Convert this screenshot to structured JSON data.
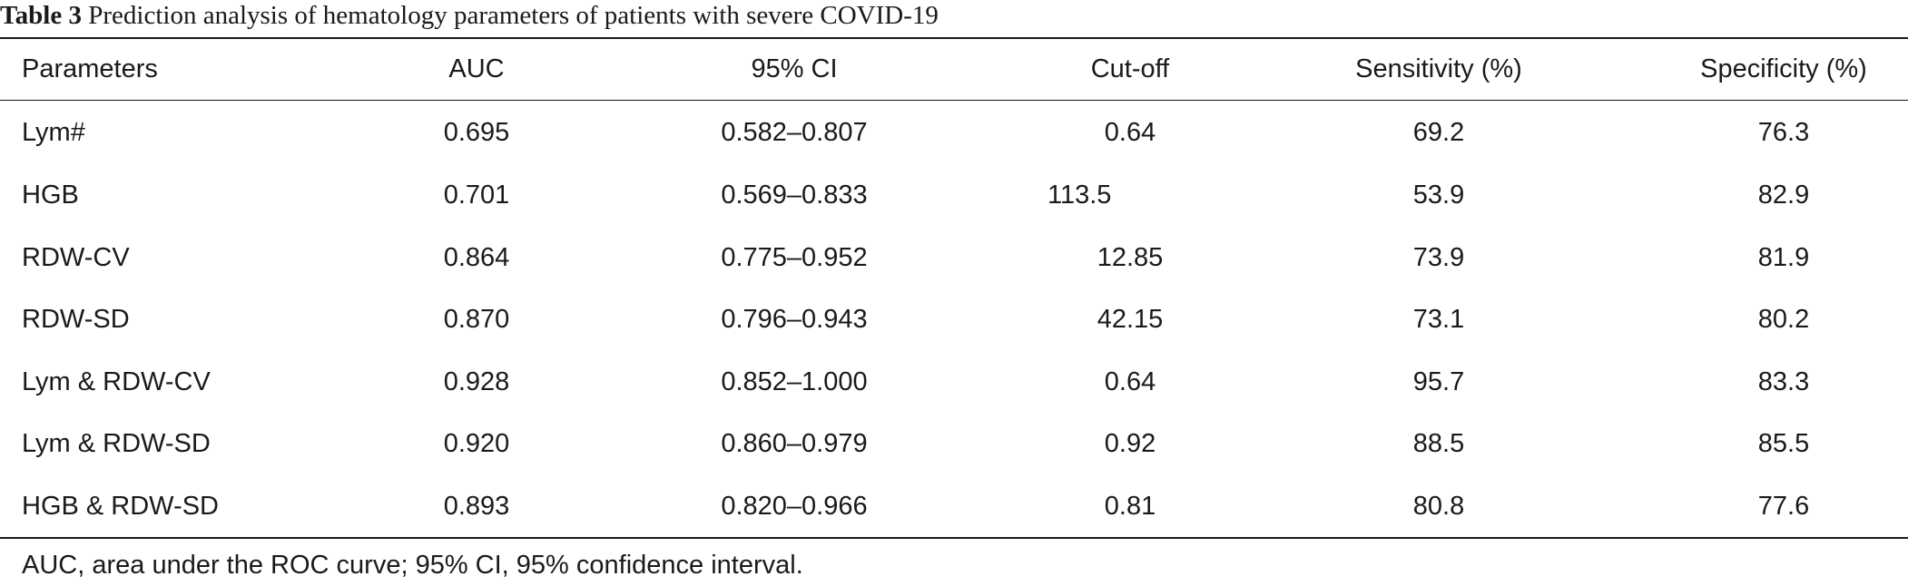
{
  "caption": {
    "label": "Table 3",
    "text": "Prediction analysis of hematology parameters of patients with severe COVID-19"
  },
  "table": {
    "headers": [
      "Parameters",
      "AUC",
      "95% CI",
      "Cut-off",
      "Sensitivity (%)",
      "Specificity (%)"
    ],
    "rows": [
      [
        "Lym#",
        "0.695",
        "0.582–0.807",
        "0.64",
        "69.2",
        "76.3"
      ],
      [
        "HGB",
        "0.701",
        "0.569–0.833",
        "113.5",
        "53.9",
        "82.9"
      ],
      [
        "RDW-CV",
        "0.864",
        "0.775–0.952",
        "12.85",
        "73.9",
        "81.9"
      ],
      [
        "RDW-SD",
        "0.870",
        "0.796–0.943",
        "42.15",
        "73.1",
        "80.2"
      ],
      [
        "Lym & RDW-CV",
        "0.928",
        "0.852–1.000",
        "0.64",
        "95.7",
        "83.3"
      ],
      [
        "Lym & RDW-SD",
        "0.920",
        "0.860–0.979",
        "0.92",
        "88.5",
        "85.5"
      ],
      [
        "HGB & RDW-SD",
        "0.893",
        "0.820–0.966",
        "0.81",
        "80.8",
        "77.6"
      ]
    ]
  },
  "footnote": "AUC, area under the ROC curve; 95% CI, 95% confidence interval."
}
